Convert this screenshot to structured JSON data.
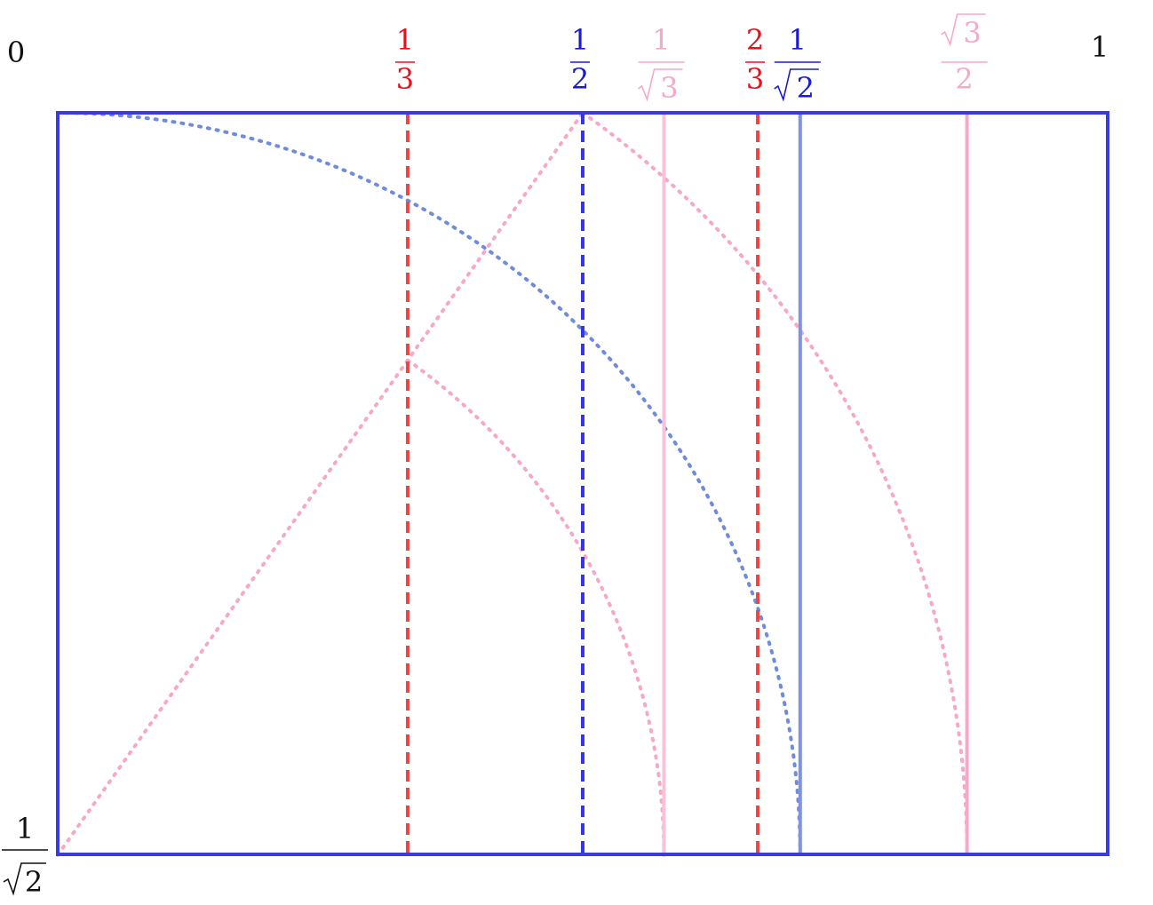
{
  "corner_labels": {
    "top_left": "0",
    "top_right": "1",
    "bottom_left": {
      "numerator": "1",
      "radicand": "2"
    }
  },
  "fractions": [
    {
      "id": "one-third",
      "numerator": "1",
      "denominator": "3",
      "value": 0.3333,
      "color": "#e8121c",
      "line_color": "#f04444",
      "line_style": "dashed"
    },
    {
      "id": "one-half",
      "numerator": "1",
      "denominator": "2",
      "value": 0.5,
      "color": "#1a1ad6",
      "line_color": "#3535f0",
      "line_style": "dashed"
    },
    {
      "id": "one-over-root-three",
      "numerator": "1",
      "denominator": "√3",
      "value": 0.5774,
      "color": "#f7a8c9",
      "line_color": "#f9c2d8",
      "line_style": "solid"
    },
    {
      "id": "two-thirds",
      "numerator": "2",
      "denominator": "3",
      "value": 0.6667,
      "color": "#e8121c",
      "line_color": "#f04444",
      "line_style": "dashed"
    },
    {
      "id": "one-over-root-two",
      "numerator": "1",
      "denominator": "√2",
      "value": 0.7071,
      "color": "#1a1ad6",
      "line_color": "#7f92e4",
      "line_style": "solid"
    },
    {
      "id": "root-three-over-two",
      "numerator": "√3",
      "denominator": "2",
      "value": 0.866,
      "color": "#f7a8c9",
      "line_color": "#f7a8c9",
      "line_style": "solid"
    }
  ],
  "colors": {
    "frame": "#3a3ae8",
    "arc_blue": "#6f8bdc",
    "arc_pink": "#f7a8c9",
    "text_black": "#111111"
  },
  "rectangle": {
    "width": 1,
    "height": 0.7071
  }
}
